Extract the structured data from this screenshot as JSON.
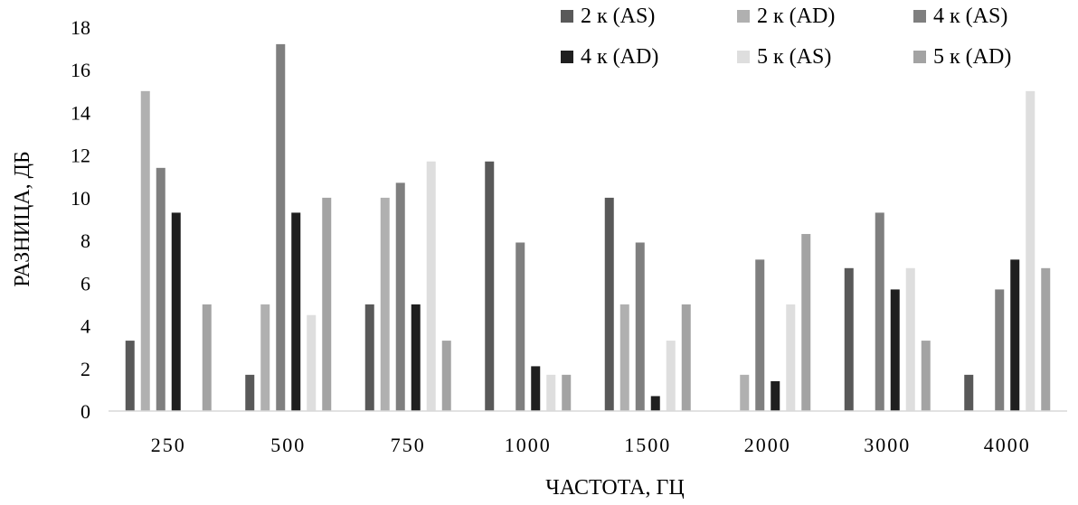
{
  "chart_data": {
    "type": "bar",
    "title": "",
    "xlabel": "ЧАСТОТА, ГЦ",
    "ylabel": "РАЗНИЦА, ДБ",
    "ylim": [
      0,
      18
    ],
    "yticks": [
      0,
      2,
      4,
      6,
      8,
      10,
      12,
      14,
      16,
      18
    ],
    "grid": false,
    "legend_position": "top-right",
    "categories": [
      "250",
      "500",
      "750",
      "1000",
      "1500",
      "2000",
      "3000",
      "4000"
    ],
    "series": [
      {
        "name": "2 к (AS)",
        "color": "#595959",
        "values": [
          3.3,
          1.7,
          5.0,
          11.7,
          10.0,
          0,
          6.7,
          1.7
        ]
      },
      {
        "name": "2 к (AD)",
        "color": "#b0b0b0",
        "values": [
          15.0,
          5.0,
          10.0,
          0,
          5.0,
          1.7,
          0,
          0
        ]
      },
      {
        "name": "4 к (AS)",
        "color": "#7f7f7f",
        "values": [
          11.4,
          17.2,
          10.7,
          7.9,
          7.9,
          7.1,
          9.3,
          5.7
        ]
      },
      {
        "name": "4 к (AD)",
        "color": "#1f1f1f",
        "values": [
          9.3,
          9.3,
          5.0,
          2.1,
          0.7,
          1.4,
          5.7,
          7.1
        ]
      },
      {
        "name": "5 к (AS)",
        "color": "#dedede",
        "values": [
          0,
          4.5,
          11.7,
          1.7,
          3.3,
          5.0,
          6.7,
          15.0
        ]
      },
      {
        "name": "5 к (AD)",
        "color": "#a3a3a3",
        "values": [
          5.0,
          10.0,
          3.3,
          1.7,
          5.0,
          8.3,
          3.3,
          6.7
        ]
      }
    ]
  }
}
